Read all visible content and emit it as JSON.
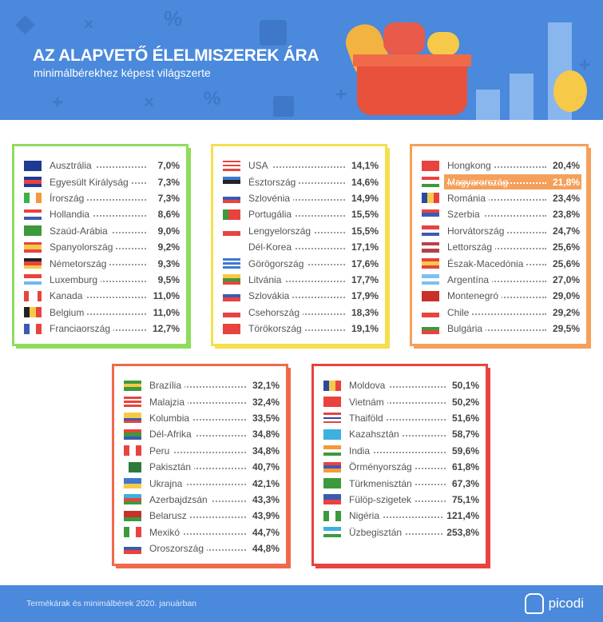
{
  "header": {
    "title": "AZ ALAPVETŐ ÉLELMISZEREK ÁRA",
    "subtitle": "minimálbérekhez képest világszerte"
  },
  "colors": {
    "header": "#4a89dc",
    "box1": "#8fdc5c",
    "box2": "#f5df4d",
    "box3": "#f5a05a",
    "box4": "#f06a4a",
    "box5": "#e8433f",
    "highlight": "#f5a05a"
  },
  "boxes": [
    {
      "items": [
        {
          "name": "Ausztrália",
          "value": "7,0%",
          "flag": [
            "h",
            "#1f3a93",
            "#1f3a93"
          ]
        },
        {
          "name": "Egyesült Királyság",
          "value": "7,3%",
          "flag": [
            "h",
            "#1f3a93",
            "#e8433f",
            "#1f3a93"
          ]
        },
        {
          "name": "Írország",
          "value": "7,3%",
          "flag": [
            "v",
            "#3cb04a",
            "#fff",
            "#f39a3a"
          ]
        },
        {
          "name": "Hollandia",
          "value": "8,6%",
          "flag": [
            "h",
            "#e8433f",
            "#fff",
            "#3d5ab0"
          ]
        },
        {
          "name": "Szaúd-Arábia",
          "value": "9,0%",
          "flag": [
            "h",
            "#3c9a3c",
            "#3c9a3c"
          ]
        },
        {
          "name": "Spanyolország",
          "value": "9,2%",
          "flag": [
            "h",
            "#e8433f",
            "#f7c948",
            "#f7c948",
            "#e8433f"
          ]
        },
        {
          "name": "Németország",
          "value": "9,3%",
          "flag": [
            "h",
            "#222",
            "#e8433f",
            "#f7c948"
          ]
        },
        {
          "name": "Luxemburg",
          "value": "9,5%",
          "flag": [
            "h",
            "#e8433f",
            "#fff",
            "#6cb8f0"
          ]
        },
        {
          "name": "Kanada",
          "value": "11,0%",
          "flag": [
            "v",
            "#e8433f",
            "#fff",
            "#fff",
            "#e8433f"
          ]
        },
        {
          "name": "Belgium",
          "value": "11,0%",
          "flag": [
            "v",
            "#222",
            "#f7c948",
            "#e8433f"
          ]
        },
        {
          "name": "Franciaország",
          "value": "12,7%",
          "flag": [
            "v",
            "#3d5ab0",
            "#fff",
            "#e8433f"
          ]
        }
      ]
    },
    {
      "items": [
        {
          "name": "USA",
          "value": "14,1%",
          "flag": [
            "h",
            "#e8433f",
            "#fff",
            "#e8433f",
            "#fff",
            "#e8433f"
          ]
        },
        {
          "name": "Észtország",
          "value": "14,6%",
          "flag": [
            "h",
            "#3d7ad0",
            "#222",
            "#fff"
          ]
        },
        {
          "name": "Szlovénia",
          "value": "14,9%",
          "flag": [
            "h",
            "#fff",
            "#3d5ab0",
            "#e8433f"
          ]
        },
        {
          "name": "Portugália",
          "value": "15,5%",
          "flag": [
            "v",
            "#3c9a3c",
            "#e8433f",
            "#e8433f"
          ]
        },
        {
          "name": "Lengyelország",
          "value": "15,5%",
          "flag": [
            "h",
            "#fff",
            "#e8433f"
          ]
        },
        {
          "name": "Dél-Korea",
          "value": "17,1%",
          "flag": [
            "h",
            "#fff",
            "#fff"
          ]
        },
        {
          "name": "Görögország",
          "value": "17,6%",
          "flag": [
            "h",
            "#3d7ad0",
            "#fff",
            "#3d7ad0",
            "#fff",
            "#3d7ad0"
          ]
        },
        {
          "name": "Litvánia",
          "value": "17,7%",
          "flag": [
            "h",
            "#f7c948",
            "#3c9a3c",
            "#e8433f"
          ]
        },
        {
          "name": "Szlovákia",
          "value": "17,9%",
          "flag": [
            "h",
            "#fff",
            "#3d5ab0",
            "#e8433f"
          ]
        },
        {
          "name": "Csehország",
          "value": "18,3%",
          "flag": [
            "h",
            "#fff",
            "#e8433f"
          ]
        },
        {
          "name": "Törökország",
          "value": "19,1%",
          "flag": [
            "h",
            "#e8433f",
            "#e8433f"
          ]
        }
      ]
    },
    {
      "items": [
        {
          "name": "Hongkong",
          "value": "20,4%",
          "flag": [
            "h",
            "#e8433f",
            "#e8433f"
          ]
        },
        {
          "name": "Magyarország",
          "value": "21,8%",
          "flag": [
            "h",
            "#e8433f",
            "#fff",
            "#3c9a3c"
          ],
          "highlight": true
        },
        {
          "name": "Románia",
          "value": "23,4%",
          "flag": [
            "v",
            "#2a4aa0",
            "#f7c948",
            "#e8433f"
          ]
        },
        {
          "name": "Szerbia",
          "value": "23,8%",
          "flag": [
            "h",
            "#e8433f",
            "#3d5ab0",
            "#fff"
          ]
        },
        {
          "name": "Horvátország",
          "value": "24,7%",
          "flag": [
            "h",
            "#e8433f",
            "#fff",
            "#3d5ab0"
          ]
        },
        {
          "name": "Lettország",
          "value": "25,6%",
          "flag": [
            "h",
            "#b8404a",
            "#fff",
            "#b8404a"
          ]
        },
        {
          "name": "Észak-Macedónia",
          "value": "25,6%",
          "flag": [
            "h",
            "#e8433f",
            "#f7c948",
            "#e8433f"
          ]
        },
        {
          "name": "Argentína",
          "value": "27,0%",
          "flag": [
            "h",
            "#7cc0f0",
            "#fff",
            "#7cc0f0"
          ]
        },
        {
          "name": "Montenegró",
          "value": "29,0%",
          "flag": [
            "h",
            "#c8302a",
            "#c8302a"
          ]
        },
        {
          "name": "Chile",
          "value": "29,2%",
          "flag": [
            "h",
            "#fff",
            "#e8433f"
          ]
        },
        {
          "name": "Bulgária",
          "value": "29,5%",
          "flag": [
            "h",
            "#fff",
            "#3c9a3c",
            "#e8433f"
          ]
        }
      ]
    },
    {
      "items": [
        {
          "name": "Brazília",
          "value": "32,1%",
          "flag": [
            "h",
            "#3c9a3c",
            "#f7c948",
            "#3c9a3c"
          ]
        },
        {
          "name": "Malajzia",
          "value": "32,4%",
          "flag": [
            "h",
            "#e8433f",
            "#fff",
            "#e8433f",
            "#fff",
            "#e8433f"
          ]
        },
        {
          "name": "Kolumbia",
          "value": "33,5%",
          "flag": [
            "h",
            "#f7c948",
            "#f7c948",
            "#3d5ab0",
            "#e8433f"
          ]
        },
        {
          "name": "Dél-Afrika",
          "value": "34,8%",
          "flag": [
            "h",
            "#e8433f",
            "#3c9a3c",
            "#3d5ab0"
          ]
        },
        {
          "name": "Peru",
          "value": "34,8%",
          "flag": [
            "v",
            "#e8433f",
            "#fff",
            "#e8433f"
          ]
        },
        {
          "name": "Pakisztán",
          "value": "40,7%",
          "flag": [
            "v",
            "#fff",
            "#2f7a3a",
            "#2f7a3a",
            "#2f7a3a"
          ]
        },
        {
          "name": "Ukrajna",
          "value": "42,1%",
          "flag": [
            "h",
            "#3d7ad0",
            "#f7c948"
          ]
        },
        {
          "name": "Azerbajdzsán",
          "value": "43,3%",
          "flag": [
            "h",
            "#3db0e0",
            "#e8433f",
            "#3c9a3c"
          ]
        },
        {
          "name": "Belarusz",
          "value": "43,9%",
          "flag": [
            "h",
            "#c8302a",
            "#c8302a",
            "#3c9a3c"
          ]
        },
        {
          "name": "Mexikó",
          "value": "44,7%",
          "flag": [
            "v",
            "#3c9a3c",
            "#fff",
            "#e8433f"
          ]
        },
        {
          "name": "Oroszország",
          "value": "44,8%",
          "flag": [
            "h",
            "#fff",
            "#3d5ab0",
            "#e8433f"
          ]
        }
      ]
    },
    {
      "items": [
        {
          "name": "Moldova",
          "value": "50,1%",
          "flag": [
            "v",
            "#2a4aa0",
            "#f7c948",
            "#e8433f"
          ]
        },
        {
          "name": "Vietnám",
          "value": "50,2%",
          "flag": [
            "h",
            "#e8433f",
            "#e8433f"
          ]
        },
        {
          "name": "Thaiföld",
          "value": "51,6%",
          "flag": [
            "h",
            "#e8433f",
            "#fff",
            "#2a4aa0",
            "#fff",
            "#e8433f"
          ]
        },
        {
          "name": "Kazahsztán",
          "value": "58,7%",
          "flag": [
            "h",
            "#3db0e0",
            "#3db0e0"
          ]
        },
        {
          "name": "India",
          "value": "59,6%",
          "flag": [
            "h",
            "#f39a3a",
            "#fff",
            "#3c9a3c"
          ]
        },
        {
          "name": "Örményország",
          "value": "61,8%",
          "flag": [
            "h",
            "#e8433f",
            "#3d5ab0",
            "#f39a3a"
          ]
        },
        {
          "name": "Türkmenisztán",
          "value": "67,3%",
          "flag": [
            "h",
            "#3c9a3c",
            "#3c9a3c"
          ]
        },
        {
          "name": "Fülöp-szigetek",
          "value": "75,1%",
          "flag": [
            "h",
            "#3d5ab0",
            "#e8433f"
          ]
        },
        {
          "name": "Nigéria",
          "value": "121,4%",
          "flag": [
            "v",
            "#3c9a3c",
            "#fff",
            "#3c9a3c"
          ]
        },
        {
          "name": "Üzbegisztán",
          "value": "253,8%",
          "flag": [
            "h",
            "#3db0e0",
            "#fff",
            "#3c9a3c"
          ]
        }
      ]
    }
  ],
  "footer": {
    "note": "Termékárak és minimálbérek 2020. januárban",
    "logo": "picodi"
  }
}
